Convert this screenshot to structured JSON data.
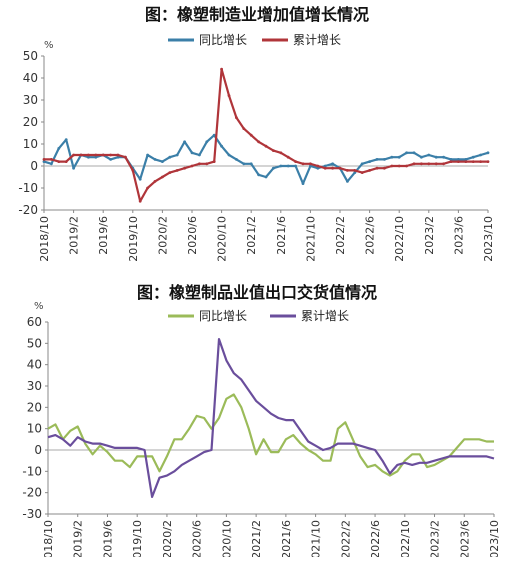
{
  "chart_data": [
    {
      "type": "line",
      "title": "图：橡塑制造业增加值增长情况",
      "unit": "%",
      "ylim": [
        -20,
        50
      ],
      "yticks": [
        -20,
        -10,
        0,
        10,
        20,
        30,
        40,
        50
      ],
      "grid": false,
      "legend_position": "top",
      "x_tick_labels": [
        "2018/10",
        "2019/2",
        "2019/6",
        "2019/10",
        "2020/2",
        "2020/6",
        "2020/10",
        "2021/2",
        "2021/6",
        "2021/10",
        "2022/2",
        "2022/6",
        "2022/10",
        "2023/2",
        "2023/6",
        "2023/10"
      ],
      "x": [
        "2018/10",
        "2018/11",
        "2018/12",
        "2019/1",
        "2019/2",
        "2019/3",
        "2019/4",
        "2019/5",
        "2019/6",
        "2019/7",
        "2019/8",
        "2019/9",
        "2019/10",
        "2019/11",
        "2019/12",
        "2020/1",
        "2020/2",
        "2020/3",
        "2020/4",
        "2020/5",
        "2020/6",
        "2020/7",
        "2020/8",
        "2020/9",
        "2020/10",
        "2020/11",
        "2020/12",
        "2021/1",
        "2021/2",
        "2021/3",
        "2021/4",
        "2021/5",
        "2021/6",
        "2021/7",
        "2021/8",
        "2021/9",
        "2021/10",
        "2021/11",
        "2021/12",
        "2022/1",
        "2022/2",
        "2022/3",
        "2022/4",
        "2022/5",
        "2022/6",
        "2022/7",
        "2022/8",
        "2022/9",
        "2022/10",
        "2022/11",
        "2022/12",
        "2023/1",
        "2023/2",
        "2023/3",
        "2023/4",
        "2023/5",
        "2023/6",
        "2023/7",
        "2023/8",
        "2023/9",
        "2023/10"
      ],
      "series": [
        {
          "name": "同比增长",
          "color": "#3b7fa8",
          "values": [
            2,
            1,
            8,
            12,
            -1,
            5,
            4,
            4,
            5,
            3,
            4,
            4,
            -1,
            -6,
            5,
            3,
            2,
            4,
            5,
            11,
            6,
            5,
            11,
            14,
            9,
            5,
            3,
            1,
            1,
            -4,
            -5,
            -1,
            0,
            0,
            0,
            -8,
            0,
            -1,
            0,
            1,
            -1,
            -7,
            -3,
            1,
            2,
            3,
            3,
            4,
            4,
            6,
            6,
            4,
            5,
            4,
            4,
            3,
            3,
            3,
            4,
            5,
            6
          ]
        },
        {
          "name": "累计增长",
          "color": "#b0353a",
          "values": [
            3,
            3,
            2,
            2,
            5,
            5,
            5,
            5,
            5,
            5,
            5,
            4,
            -2,
            -16,
            -10,
            -7,
            -5,
            -3,
            -2,
            -1,
            0,
            1,
            1,
            2,
            44,
            32,
            22,
            17,
            14,
            11,
            9,
            7,
            6,
            4,
            2,
            1,
            1,
            0,
            -1,
            -1,
            -1,
            -2,
            -2,
            -3,
            -2,
            -1,
            -1,
            0,
            0,
            0,
            1,
            1,
            1,
            1,
            1,
            2,
            2,
            2,
            2,
            2,
            2
          ]
        }
      ]
    },
    {
      "type": "line",
      "title": "图：橡塑制品业值出口交货值情况",
      "unit": "%",
      "ylim": [
        -30,
        60
      ],
      "yticks": [
        -30,
        -20,
        -10,
        0,
        10,
        20,
        30,
        40,
        50,
        60
      ],
      "grid": false,
      "legend_position": "top",
      "x_tick_labels": [
        "2018/10",
        "2019/2",
        "2019/6",
        "2019/10",
        "2020/2",
        "2020/6",
        "2020/10",
        "2021/2",
        "2021/6",
        "2021/10",
        "2022/2",
        "2022/6",
        "2022/10",
        "2023/2",
        "2023/6",
        "2023/10"
      ],
      "x": [
        "2018/10",
        "2018/11",
        "2018/12",
        "2019/1",
        "2019/2",
        "2019/3",
        "2019/4",
        "2019/5",
        "2019/6",
        "2019/7",
        "2019/8",
        "2019/9",
        "2019/10",
        "2019/11",
        "2019/12",
        "2020/1",
        "2020/2",
        "2020/3",
        "2020/4",
        "2020/5",
        "2020/6",
        "2020/7",
        "2020/8",
        "2020/9",
        "2020/10",
        "2020/11",
        "2020/12",
        "2021/1",
        "2021/2",
        "2021/3",
        "2021/4",
        "2021/5",
        "2021/6",
        "2021/7",
        "2021/8",
        "2021/9",
        "2021/10",
        "2021/11",
        "2021/12",
        "2022/1",
        "2022/2",
        "2022/3",
        "2022/4",
        "2022/5",
        "2022/6",
        "2022/7",
        "2022/8",
        "2022/9",
        "2022/10",
        "2022/11",
        "2022/12",
        "2023/1",
        "2023/2",
        "2023/3",
        "2023/4",
        "2023/5",
        "2023/6",
        "2023/7",
        "2023/8",
        "2023/9",
        "2023/10"
      ],
      "series": [
        {
          "name": "同比增长",
          "color": "#9bbb59",
          "values": [
            10,
            12,
            5,
            9,
            11,
            3,
            -2,
            2,
            -1,
            -5,
            -5,
            -8,
            -3,
            -3,
            -3,
            -10,
            -3,
            5,
            5,
            10,
            16,
            15,
            10,
            15,
            24,
            26,
            20,
            10,
            -2,
            5,
            -1,
            -1,
            5,
            7,
            3,
            0,
            -2,
            -5,
            -5,
            10,
            13,
            5,
            -3,
            -8,
            -7,
            -10,
            -12,
            -10,
            -5,
            -2,
            -2,
            -8,
            -7,
            -5,
            -3,
            1,
            5,
            5,
            5,
            4,
            4
          ]
        },
        {
          "name": "累计增长",
          "color": "#6a4e9c",
          "values": [
            6,
            7,
            5,
            2,
            6,
            4,
            3,
            3,
            2,
            1,
            1,
            1,
            1,
            0,
            -22,
            -13,
            -12,
            -10,
            -7,
            -5,
            -3,
            -1,
            0,
            52,
            42,
            36,
            33,
            28,
            23,
            20,
            17,
            15,
            14,
            14,
            9,
            4,
            2,
            0,
            1,
            3,
            3,
            3,
            2,
            1,
            0,
            -5,
            -11,
            -7,
            -6,
            -7,
            -6,
            -6,
            -5,
            -4,
            -3,
            -3,
            -3,
            -3,
            -3,
            -3,
            -4
          ]
        }
      ]
    }
  ]
}
